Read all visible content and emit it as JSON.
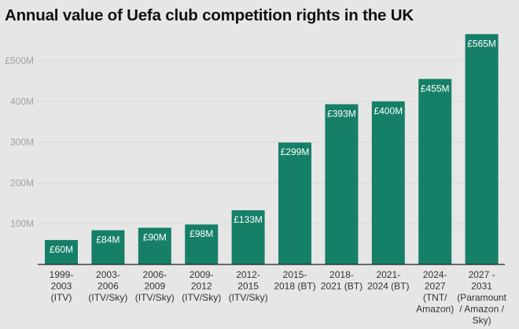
{
  "chart_data": {
    "type": "bar",
    "title": "Annual value of Uefa club competition rights in the UK",
    "categories": [
      "1999-\n2003\n(ITV)",
      "2003-\n2006\n(ITV/Sky)",
      "2006-\n2009\n(ITV/Sky)",
      "2009-\n2012\n(ITV/Sky)",
      "2012-\n2015\n(ITV/Sky)",
      "2015-\n2018 (BT)",
      "2018-\n2021 (BT)",
      "2021-\n2024 (BT)",
      "2024-\n2027\n(TNT/\nAmazon)",
      "2027 -\n2031\n(Paramount\n/ Amazon /\nSky)"
    ],
    "values": [
      60,
      84,
      90,
      98,
      133,
      299,
      393,
      400,
      455,
      565
    ],
    "data_labels": [
      "£60M",
      "£84M",
      "£90M",
      "£98M",
      "£133M",
      "£299M",
      "£393M",
      "£400M",
      "£455M",
      "£565M"
    ],
    "xlabel": "",
    "ylabel": "",
    "ylim": [
      0,
      565
    ],
    "yticks": [
      100,
      200,
      300,
      400,
      500
    ],
    "ytick_labels": [
      "100M",
      "200M",
      "300M",
      "400M",
      "£500M"
    ],
    "grid": true,
    "colors": {
      "bar": "#167f67",
      "background": "#e6e6e6",
      "grid": "#d9d9d9",
      "axis": "#222222"
    }
  }
}
